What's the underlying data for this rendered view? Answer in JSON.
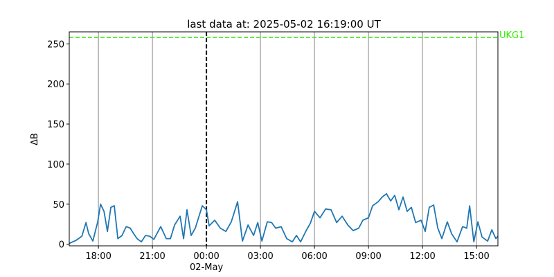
{
  "chart_data": {
    "type": "line",
    "title": "last data at: 2025-05-02 16:19:00 UT",
    "y_label": "ΔB",
    "x": [
      -7.62,
      -7.23,
      -6.92,
      -6.69,
      -6.54,
      -6.31,
      -6.04,
      -5.88,
      -5.69,
      -5.5,
      -5.31,
      -5.12,
      -4.92,
      -4.69,
      -4.46,
      -4.23,
      -4.04,
      -3.85,
      -3.62,
      -3.38,
      -3.15,
      -2.92,
      -2.54,
      -2.23,
      -2.0,
      -1.77,
      -1.46,
      -1.27,
      -1.08,
      -0.85,
      -0.62,
      -0.23,
      0,
      0.15,
      0.46,
      0.77,
      1.08,
      1.38,
      1.73,
      2.0,
      2.31,
      2.62,
      2.85,
      3.08,
      3.38,
      3.62,
      3.85,
      4.15,
      4.46,
      4.77,
      5.0,
      5.23,
      5.54,
      5.77,
      6.0,
      6.31,
      6.62,
      6.92,
      7.23,
      7.54,
      7.85,
      8.15,
      8.46,
      8.69,
      9.0,
      9.23,
      9.54,
      9.77,
      10.0,
      10.23,
      10.46,
      10.69,
      10.92,
      11.15,
      11.38,
      11.62,
      11.92,
      12.15,
      12.38,
      12.62,
      12.85,
      13.08,
      13.38,
      13.62,
      13.92,
      14.23,
      14.46,
      14.62,
      14.85,
      15.08,
      15.31,
      15.62,
      15.85,
      16.08,
      16.19
    ],
    "series": [
      {
        "color": "#1f77b4",
        "values": [
          1,
          5,
          10,
          27,
          13,
          4,
          28,
          50,
          41,
          16,
          46,
          48,
          7,
          11,
          22,
          20,
          13,
          7,
          3,
          11,
          10,
          6,
          22,
          7,
          7,
          24,
          35,
          7,
          43,
          11,
          20,
          48,
          43,
          23,
          30,
          20,
          16,
          28,
          53,
          4,
          24,
          11,
          27,
          4,
          28,
          27,
          20,
          22,
          7,
          3,
          11,
          3,
          17,
          26,
          41,
          33,
          44,
          43,
          27,
          35,
          24,
          17,
          20,
          30,
          33,
          48,
          53,
          59,
          63,
          54,
          61,
          43,
          59,
          41,
          46,
          27,
          30,
          16,
          46,
          49,
          20,
          7,
          28,
          13,
          3,
          22,
          20,
          48,
          3,
          28,
          9,
          4,
          18,
          7,
          10
        ]
      }
    ],
    "threshold": {
      "value": 258,
      "label": "UKG1",
      "color": "#33ee00"
    },
    "vline": 0,
    "xlim": [
      -7.62,
      16.19
    ],
    "ylim": [
      -2,
      265
    ],
    "xticks": [
      {
        "value": -6,
        "label": "18:00"
      },
      {
        "value": -3,
        "label": "21:00"
      },
      {
        "value": 0,
        "label": "00:00"
      },
      {
        "value": 3,
        "label": "03:00"
      },
      {
        "value": 6,
        "label": "06:00"
      },
      {
        "value": 9,
        "label": "09:00"
      },
      {
        "value": 12,
        "label": "12:00"
      },
      {
        "value": 15,
        "label": "15:00"
      }
    ],
    "xtick_sublabel": "02-May",
    "yticks": [
      0,
      50,
      100,
      150,
      200,
      250
    ],
    "grid_x": true
  }
}
